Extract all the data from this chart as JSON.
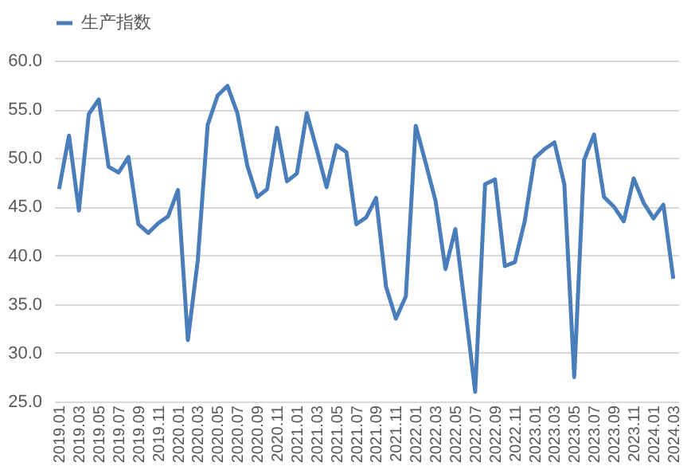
{
  "chart_data": {
    "type": "line",
    "categories": [
      "2019.01",
      null,
      "2019.03",
      null,
      "2019.05",
      null,
      "2019.07",
      null,
      "2019.09",
      null,
      "2019.11",
      null,
      "2020.01",
      null,
      "2020.03",
      null,
      "2020.05",
      null,
      "2020.07",
      null,
      "2020.09",
      null,
      "2020.11",
      null,
      "2021.01",
      null,
      "2021.03",
      null,
      "2021.05",
      null,
      "2021.07",
      null,
      "2021.09",
      null,
      "2021.11",
      null,
      "2022.01",
      null,
      "2022.03",
      null,
      "2022.05",
      null,
      "2022.07",
      null,
      "2022.09",
      null,
      "2022.11",
      null,
      "2023.01",
      null,
      "2023.03",
      null,
      "2023.05",
      null,
      "2023.07",
      null,
      "2023.09",
      null,
      "2023.11",
      null,
      "2024.01",
      null,
      "2024.03"
    ],
    "series": [
      {
        "name": "生产指数",
        "color": "#4a7ebb",
        "values": [
          46.8,
          52.3,
          44.6,
          54.5,
          56.0,
          49.1,
          48.5,
          50.1,
          43.2,
          42.3,
          43.3,
          44.0,
          46.7,
          31.3,
          39.5,
          53.4,
          56.4,
          57.4,
          54.6,
          49.2,
          46.0,
          46.8,
          53.1,
          47.6,
          48.4,
          54.6,
          50.9,
          47.0,
          51.3,
          50.6,
          43.2,
          43.9,
          45.9,
          36.8,
          33.5,
          35.8,
          53.3,
          49.5,
          45.6,
          38.6,
          42.7,
          34.5,
          26.0,
          47.3,
          47.8,
          38.9,
          39.3,
          43.5,
          50.0,
          50.9,
          51.6,
          47.3,
          27.5,
          49.8,
          52.4,
          46.0,
          45.0,
          43.5,
          47.9,
          45.4,
          43.8,
          45.2,
          37.6
        ]
      }
    ],
    "ylim": [
      25,
      60
    ],
    "yticks": [
      {
        "value": 25,
        "label": "25.0"
      },
      {
        "value": 30,
        "label": "30.0"
      },
      {
        "value": 35,
        "label": "35.0"
      },
      {
        "value": 40,
        "label": "40.0"
      },
      {
        "value": 45,
        "label": "45.0"
      },
      {
        "value": 50,
        "label": "50.0"
      },
      {
        "value": 55,
        "label": "55.0"
      },
      {
        "value": 60,
        "label": "60.0"
      }
    ],
    "grid": "y",
    "legend": "top",
    "marker": "none",
    "line_style": "solid"
  }
}
